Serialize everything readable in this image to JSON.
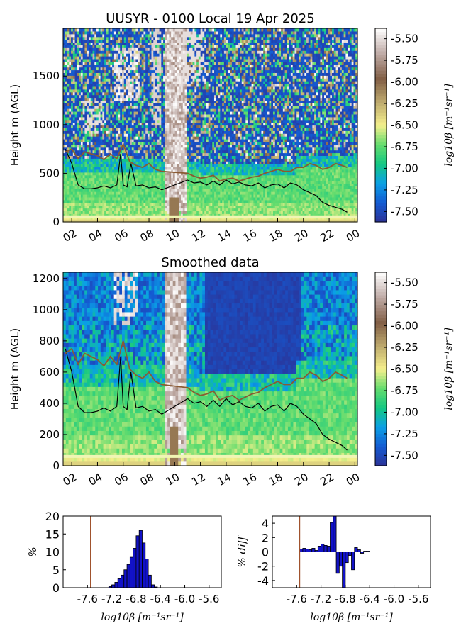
{
  "chart_data": [
    {
      "type": "heatmap",
      "title": "UUSYR - 0100 Local 19 Apr 2025",
      "ylabel": "Height m (AGL)",
      "ylim": [
        0,
        1990
      ],
      "yticks": [
        0,
        500,
        1000,
        1500
      ],
      "xticks": [
        "02",
        "04",
        "06",
        "08",
        "10",
        "12",
        "14",
        "16",
        "18",
        "20",
        "22",
        "00"
      ],
      "colorbar": {
        "label": "log10β [m⁻¹sr⁻¹]",
        "ticks": [
          "-5.50",
          "-5.75",
          "-6.00",
          "-6.25",
          "-6.50",
          "-6.75",
          "-7.00",
          "-7.25",
          "-7.50"
        ],
        "range": [
          -7.62,
          -5.38
        ]
      },
      "series": [
        {
          "style": "black",
          "x": [
            1.5,
            2.0,
            2.5,
            3.0,
            3.5,
            4.0,
            4.5,
            5.0,
            5.5,
            5.8,
            6.0,
            6.3,
            6.6,
            7.0,
            7.5,
            8.0,
            8.5,
            9.0,
            11.0,
            11.5,
            12.0,
            12.5,
            13.0,
            13.5,
            14.0,
            14.5,
            15.0,
            15.5,
            16.0,
            16.5,
            17.0,
            17.5,
            18.0,
            18.5,
            19.0,
            19.5,
            20.0,
            20.5,
            21.0,
            21.5,
            22.0,
            22.5,
            23.0,
            23.4
          ],
          "y": [
            750,
            600,
            380,
            340,
            340,
            350,
            370,
            350,
            380,
            700,
            380,
            360,
            600,
            370,
            380,
            350,
            360,
            330,
            430,
            400,
            410,
            380,
            420,
            380,
            430,
            390,
            410,
            380,
            370,
            400,
            350,
            380,
            390,
            350,
            400,
            380,
            330,
            300,
            270,
            200,
            170,
            150,
            130,
            100
          ]
        },
        {
          "style": "brown",
          "x": [
            1.5,
            2.0,
            2.5,
            3.0,
            3.5,
            4.0,
            4.5,
            5.0,
            5.5,
            6.0,
            6.5,
            7.0,
            7.5,
            8.0,
            8.5,
            9.0,
            11.0,
            11.5,
            12.0,
            12.5,
            13.0,
            13.5,
            14.0,
            14.5,
            15.0,
            15.5,
            16.0,
            16.5,
            17.0,
            17.5,
            18.0,
            18.5,
            19.0,
            19.5,
            20.0,
            20.5,
            21.0,
            21.5,
            22.0,
            22.5,
            23.0,
            23.4
          ],
          "y": [
            720,
            750,
            650,
            720,
            700,
            680,
            640,
            700,
            650,
            800,
            620,
            580,
            560,
            600,
            540,
            520,
            500,
            470,
            450,
            460,
            480,
            420,
            440,
            450,
            420,
            440,
            460,
            470,
            500,
            520,
            540,
            520,
            520,
            560,
            560,
            600,
            580,
            540,
            560,
            600,
            580,
            560
          ]
        }
      ]
    },
    {
      "type": "heatmap",
      "title": "Smoothed data",
      "ylabel": "Height m (AGL)",
      "ylim": [
        0,
        1240
      ],
      "yticks": [
        0,
        200,
        400,
        600,
        800,
        1000,
        1200
      ],
      "xticks": [
        "02",
        "04",
        "06",
        "08",
        "10",
        "12",
        "14",
        "16",
        "18",
        "20",
        "22",
        "00"
      ],
      "colorbar": {
        "label": "log10β [m⁻¹sr⁻¹]",
        "ticks": [
          "-5.50",
          "-5.75",
          "-6.00",
          "-6.25",
          "-6.50",
          "-6.75",
          "-7.00",
          "-7.25",
          "-7.50"
        ],
        "range": [
          -7.62,
          -5.38
        ]
      },
      "series": [
        {
          "style": "black",
          "x": [
            1.5,
            2.0,
            2.5,
            3.0,
            3.5,
            4.0,
            4.5,
            5.0,
            5.5,
            5.8,
            6.0,
            6.3,
            6.6,
            7.0,
            7.5,
            8.0,
            8.5,
            9.0,
            11.0,
            11.5,
            12.0,
            12.5,
            13.0,
            13.5,
            14.0,
            14.5,
            15.0,
            15.5,
            16.0,
            16.5,
            17.0,
            17.5,
            18.0,
            18.5,
            19.0,
            19.5,
            20.0,
            20.5,
            21.0,
            21.5,
            22.0,
            22.5,
            23.0,
            23.4
          ],
          "y": [
            750,
            600,
            380,
            340,
            340,
            350,
            370,
            350,
            380,
            700,
            380,
            360,
            600,
            370,
            380,
            350,
            360,
            330,
            430,
            400,
            410,
            380,
            420,
            380,
            430,
            390,
            410,
            380,
            370,
            400,
            350,
            380,
            390,
            350,
            400,
            380,
            330,
            300,
            270,
            200,
            170,
            150,
            130,
            100
          ]
        },
        {
          "style": "brown",
          "x": [
            1.5,
            2.0,
            2.5,
            3.0,
            3.5,
            4.0,
            4.5,
            5.0,
            5.5,
            6.0,
            6.5,
            7.0,
            7.5,
            8.0,
            8.5,
            9.0,
            11.0,
            11.5,
            12.0,
            12.5,
            13.0,
            13.5,
            14.0,
            14.5,
            15.0,
            15.5,
            16.0,
            16.5,
            17.0,
            17.5,
            18.0,
            18.5,
            19.0,
            19.5,
            20.0,
            20.5,
            21.0,
            21.5,
            22.0,
            22.5,
            23.0,
            23.4
          ],
          "y": [
            720,
            750,
            650,
            720,
            700,
            680,
            640,
            700,
            650,
            800,
            620,
            580,
            560,
            600,
            540,
            520,
            500,
            470,
            450,
            460,
            480,
            420,
            440,
            450,
            420,
            440,
            460,
            470,
            500,
            520,
            540,
            520,
            520,
            560,
            560,
            600,
            580,
            540,
            560,
            600,
            580,
            560
          ]
        }
      ]
    },
    {
      "type": "bar",
      "ylabel": "%",
      "xlabel": "log10β [m⁻¹sr⁻¹]",
      "xlim": [
        -8.0,
        -5.4
      ],
      "ylim": [
        0,
        20
      ],
      "xticks": [
        "-7.6",
        "-7.2",
        "-6.8",
        "-6.4",
        "-6.0",
        "-5.6"
      ],
      "yticks": [
        0,
        5,
        10,
        15,
        20
      ],
      "vline": -7.55,
      "bins": [
        -7.25,
        -7.2,
        -7.15,
        -7.1,
        -7.05,
        -7.0,
        -6.95,
        -6.9,
        -6.85,
        -6.8,
        -6.75,
        -6.7,
        -6.65,
        -6.6,
        -6.55,
        -6.5
      ],
      "values": [
        0.3,
        0.8,
        1.5,
        2.5,
        3.5,
        5.0,
        6.5,
        8.5,
        11.0,
        14.5,
        16.0,
        12.5,
        8.0,
        3.5,
        0.8,
        0.2
      ]
    },
    {
      "type": "bar",
      "ylabel": "% diff",
      "xlabel": "log10β [m⁻¹sr⁻¹]",
      "xlim": [
        -8.0,
        -5.4
      ],
      "ylim": [
        -5,
        5
      ],
      "xticks": [
        "-7.6",
        "-7.2",
        "-6.8",
        "-6.4",
        "-6.0",
        "-5.6"
      ],
      "yticks": [
        4,
        2,
        0,
        -2,
        -4
      ],
      "vline": -7.55,
      "bins": [
        -7.55,
        -7.5,
        -7.45,
        -7.4,
        -7.35,
        -7.3,
        -7.25,
        -7.2,
        -7.15,
        -7.1,
        -7.05,
        -7.0,
        -6.95,
        -6.9,
        -6.85,
        -6.8,
        -6.75,
        -6.7,
        -6.65,
        -6.6,
        -6.55,
        -6.5,
        -6.45
      ],
      "values": [
        0.4,
        0.5,
        0.4,
        0.3,
        0.5,
        0.2,
        0.8,
        1.1,
        0.9,
        0.8,
        4.1,
        5.0,
        -3.0,
        -2.0,
        -5.0,
        -1.5,
        -0.5,
        -2.5,
        0.6,
        0.3,
        -0.2,
        0.1,
        0.1
      ]
    }
  ]
}
